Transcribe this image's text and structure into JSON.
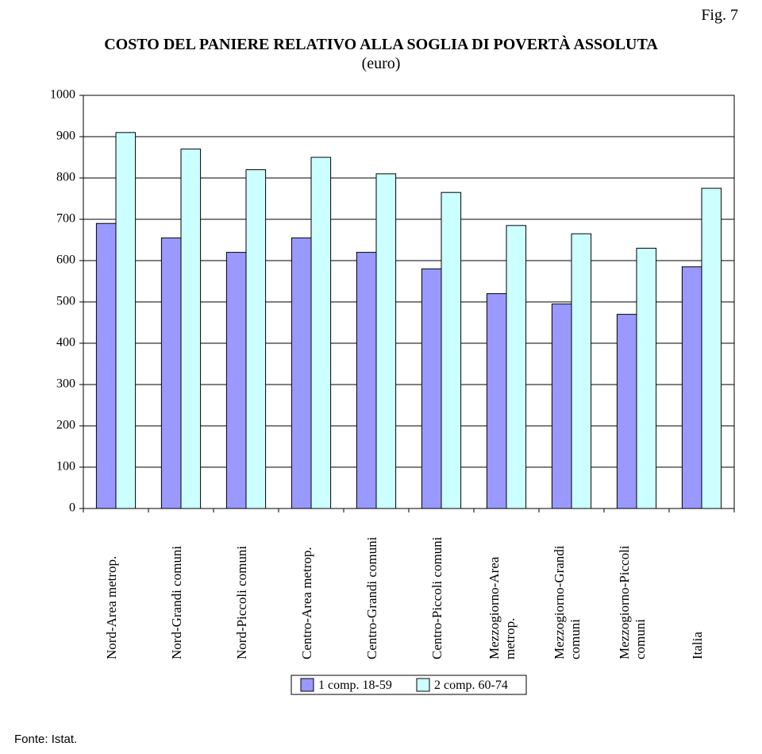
{
  "fig_number": "Fig. 7",
  "title_line1": "COSTO DEL PANIERE RELATIVO ALLA SOGLIA DI POVERTÀ ASSOLUTA",
  "title_line2": "(euro)",
  "source": "Fonte: Istat.",
  "chart": {
    "type": "bar",
    "background_color": "#ffffff",
    "border_color": "#000000",
    "grid_color": "#000000",
    "ylim": [
      0,
      1000
    ],
    "ytick_step": 100,
    "yticks": [
      "0",
      "100",
      "200",
      "300",
      "400",
      "500",
      "600",
      "700",
      "800",
      "900",
      "1000"
    ],
    "tick_fontsize": 16,
    "label_fontsize": 17,
    "categories": [
      "Nord-Area metrop.",
      "Nord-Grandi comuni",
      "Nord-Piccoli comuni",
      "Centro-Area metrop.",
      "Centro-Grandi comuni",
      "Centro-Piccoli comuni",
      "Mezzogiorno-Area metrop.",
      "Mezzogiorno-Grandi comuni",
      "Mezzogiorno-Piccoli comuni",
      "Italia"
    ],
    "series": [
      {
        "name": "1 comp. 18-59",
        "color": "#9999ff",
        "border": "#000000",
        "values": [
          690,
          655,
          620,
          655,
          620,
          580,
          520,
          495,
          470,
          585
        ]
      },
      {
        "name": "2 comp. 60-74",
        "color": "#ccffff",
        "border": "#000000",
        "values": [
          910,
          870,
          820,
          850,
          810,
          765,
          685,
          665,
          630,
          775
        ]
      }
    ],
    "legend": {
      "items": [
        "1 comp. 18-59",
        "2 comp. 60-74"
      ],
      "swatches": [
        "#9999ff",
        "#ccffff"
      ],
      "border": "#000000"
    }
  }
}
